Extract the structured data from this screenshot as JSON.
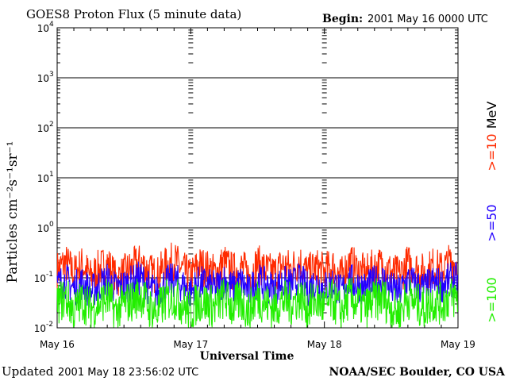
{
  "header": {
    "title": "GOES8 Proton Flux (5 minute data)",
    "begin_label": "Begin:",
    "begin_value": "2001 May 16 0000 UTC"
  },
  "footer": {
    "updated_label": "Updated",
    "updated_value": "2001 May 18 23:56:02 UTC",
    "source": "NOAA/SEC Boulder, CO USA"
  },
  "chart_data": {
    "type": "line",
    "xlabel": "Universal Time",
    "ylabel": "Particles cm⁻²s⁻¹sr⁻¹",
    "yscale": "log",
    "ylim": [
      0.01,
      10000
    ],
    "xlim_days": [
      0,
      3
    ],
    "x_ticks": [
      "May 16",
      "May 17",
      "May 18",
      "May 19"
    ],
    "y_ticks": [
      {
        "base": "10",
        "exp": "4"
      },
      {
        "base": "10",
        "exp": "3"
      },
      {
        "base": "10",
        "exp": "2"
      },
      {
        "base": "10",
        "exp": "1"
      },
      {
        "base": "10",
        "exp": "0"
      },
      {
        "base": "10",
        "exp": "-1"
      },
      {
        "base": "10",
        "exp": "-2"
      }
    ],
    "grid": true,
    "legend_unit": "MeV",
    "legend_placement": "right",
    "series": [
      {
        "name": ">=10",
        "color": "#ff2a00",
        "values": [
          0.14,
          0.2,
          0.12,
          0.18,
          0.1,
          0.15,
          0.19,
          0.09,
          0.12,
          0.16,
          0.2,
          0.13,
          0.11,
          0.17,
          0.22,
          0.14,
          0.1,
          0.18,
          0.15,
          0.12,
          0.2,
          0.13,
          0.16,
          0.11,
          0.19,
          0.14,
          0.12,
          0.18,
          0.15,
          0.21,
          0.12,
          0.16,
          0.13,
          0.17,
          0.1,
          0.2,
          0.14,
          0.12,
          0.16,
          0.18,
          0.13,
          0.11,
          0.19,
          0.15,
          0.12,
          0.17,
          0.14,
          0.2
        ]
      },
      {
        "name": ">=50",
        "color": "#2200ff",
        "values": [
          0.07,
          0.09,
          0.06,
          0.08,
          0.05,
          0.07,
          0.09,
          0.06,
          0.07,
          0.08,
          0.1,
          0.06,
          0.05,
          0.08,
          0.09,
          0.07,
          0.05,
          0.08,
          0.07,
          0.06,
          0.09,
          0.06,
          0.08,
          0.05,
          0.09,
          0.07,
          0.06,
          0.08,
          0.07,
          0.09,
          0.06,
          0.08,
          0.06,
          0.08,
          0.05,
          0.09,
          0.07,
          0.06,
          0.08,
          0.09,
          0.06,
          0.05,
          0.09,
          0.07,
          0.06,
          0.08,
          0.07,
          0.09
        ]
      },
      {
        "name": ">=100",
        "color": "#22ee00",
        "values": [
          0.03,
          0.04,
          0.02,
          0.035,
          0.025,
          0.03,
          0.04,
          0.02,
          0.03,
          0.035,
          0.045,
          0.025,
          0.02,
          0.035,
          0.04,
          0.03,
          0.02,
          0.035,
          0.03,
          0.025,
          0.04,
          0.025,
          0.035,
          0.02,
          0.04,
          0.03,
          0.025,
          0.035,
          0.03,
          0.04,
          0.025,
          0.035,
          0.025,
          0.035,
          0.02,
          0.04,
          0.03,
          0.025,
          0.035,
          0.04,
          0.025,
          0.02,
          0.04,
          0.03,
          0.025,
          0.035,
          0.03,
          0.04
        ]
      }
    ]
  }
}
